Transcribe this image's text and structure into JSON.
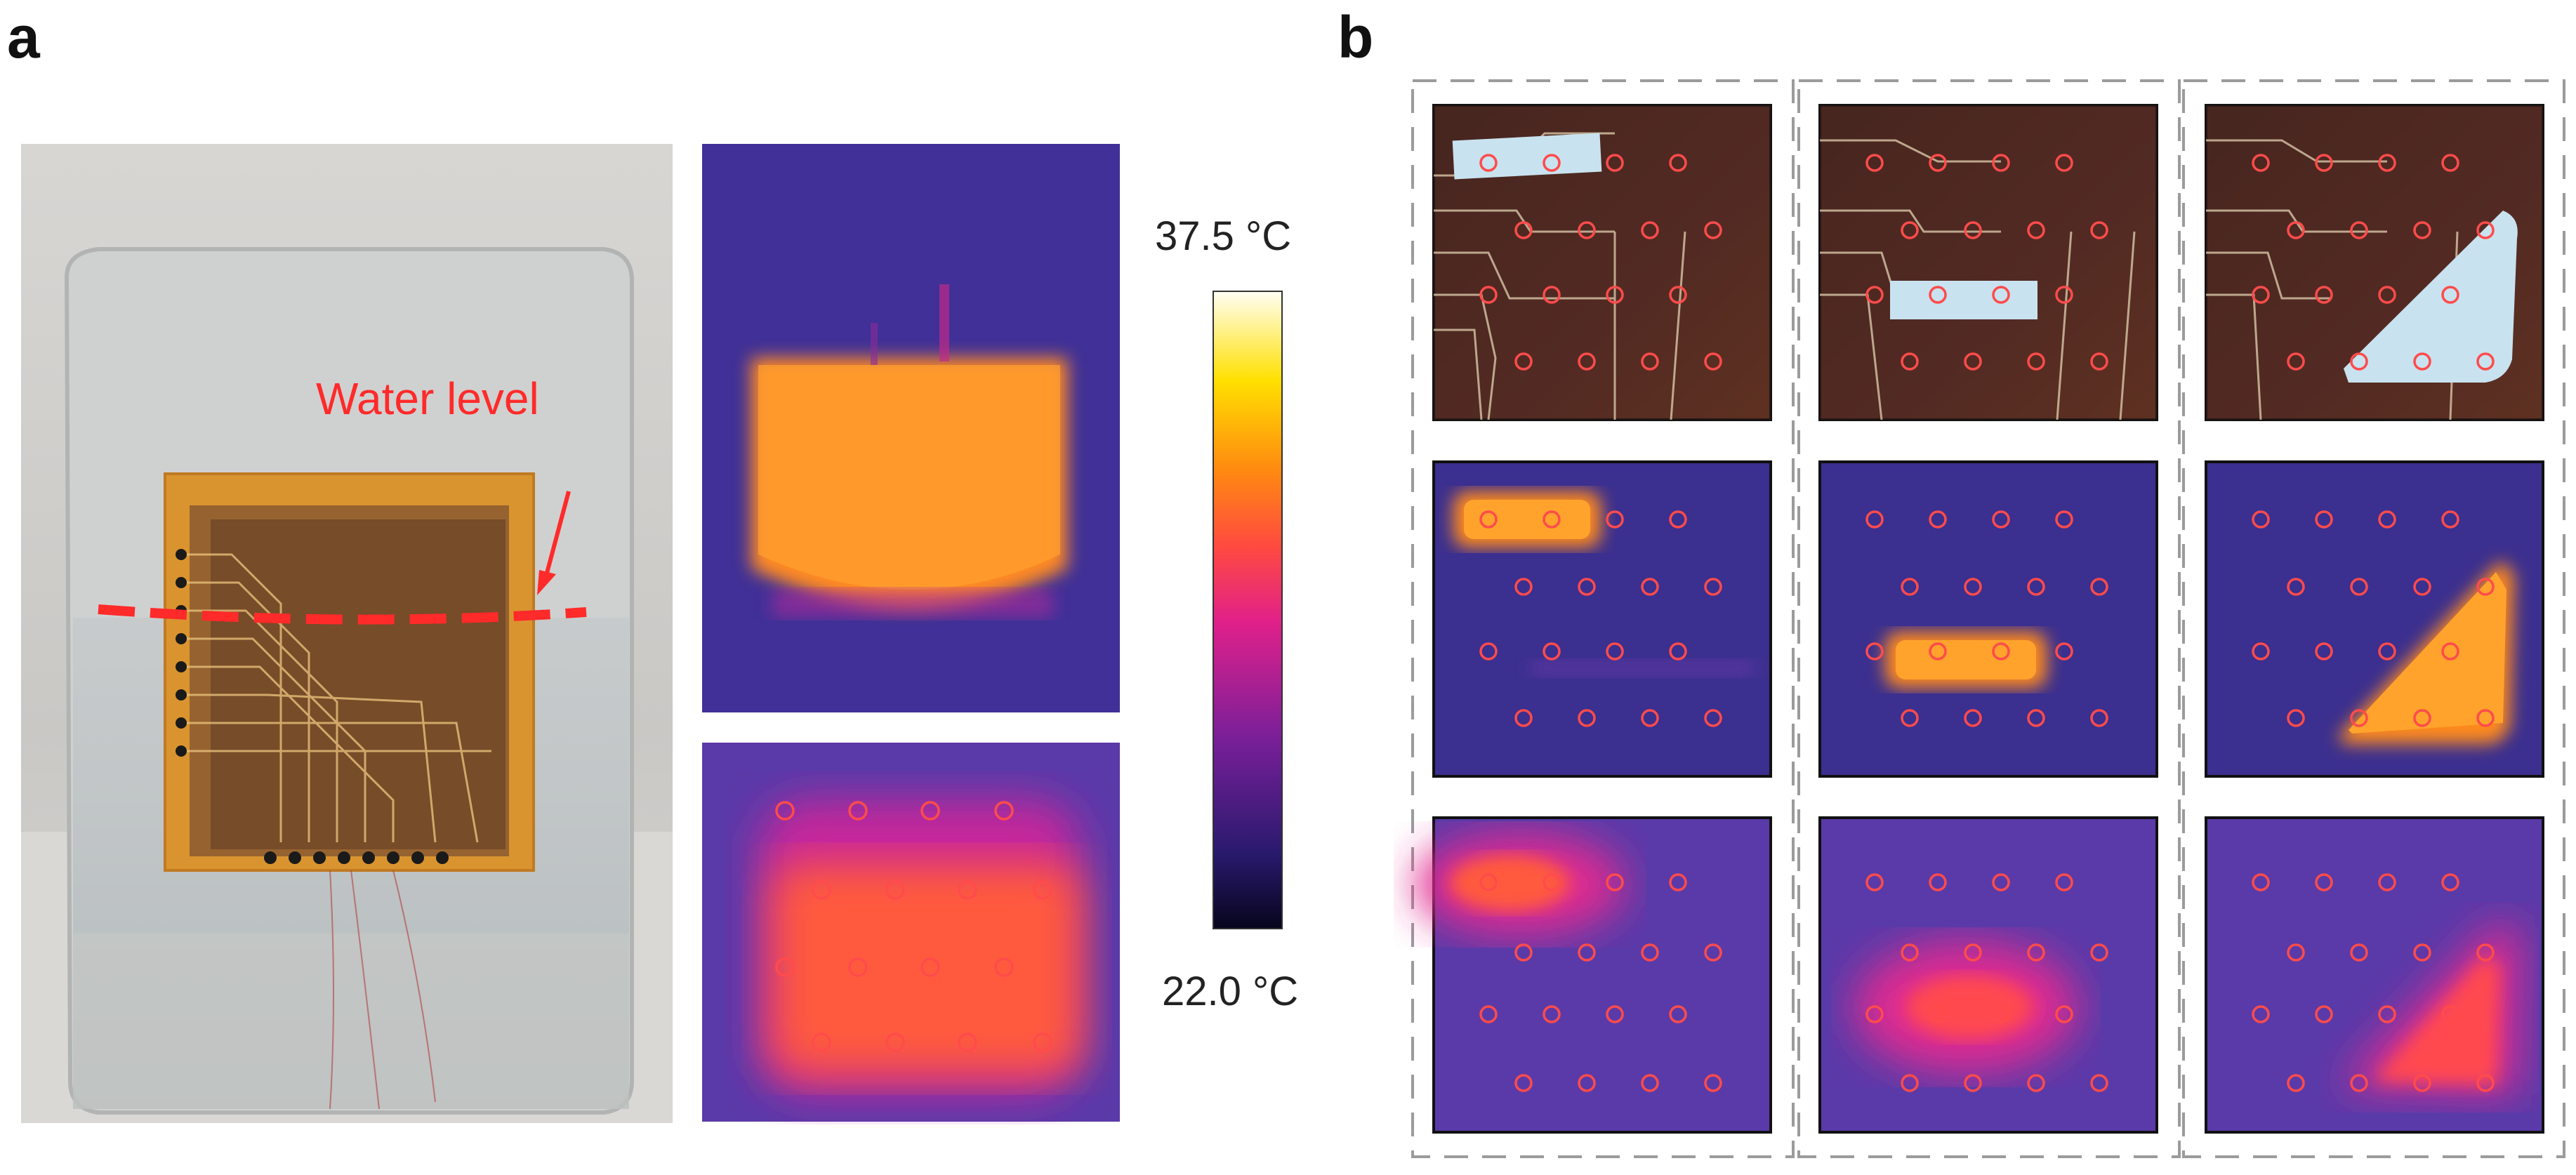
{
  "panel_a": {
    "label": "a",
    "photo_annotation": "Water level",
    "colorbar": {
      "max_label": "37.5 °C",
      "min_label": "22.0 °C"
    }
  },
  "panel_b": {
    "label": "b",
    "columns": 3,
    "rows": [
      "photo",
      "thermal-image",
      "reconstructed-map"
    ]
  },
  "colors": {
    "annotation_red": "#ff2a2a",
    "sensor_circle_red": "#ff4b4b",
    "thermal_background": "#3b2f8f",
    "thermal_hot": "#ff8a1c",
    "label_paper": "#c9e2ef"
  }
}
